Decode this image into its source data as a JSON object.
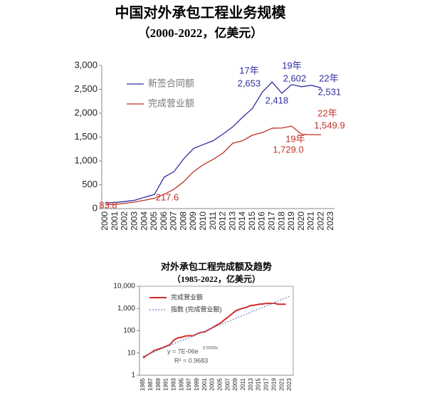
{
  "chart_data": [
    {
      "type": "line",
      "title": "中国对外承包工程业务规模",
      "subtitle": "（2000-2022，亿美元）",
      "categories": [
        "2000",
        "2001",
        "2002",
        "2003",
        "2004",
        "2005",
        "2006",
        "2007",
        "2008",
        "2009",
        "2010",
        "2011",
        "2012",
        "2013",
        "2014",
        "2015",
        "2016",
        "2017",
        "2018",
        "2019",
        "2020",
        "2021",
        "2022",
        "2023"
      ],
      "series": [
        {
          "name": "新签合同额",
          "color": "#2e2ea0",
          "values": [
            117,
            130,
            150,
            176,
            238,
            296,
            660,
            776,
            1046,
            1262,
            1344,
            1423,
            1565,
            1716,
            1918,
            2101,
            2440,
            2653,
            2418,
            2602,
            2555,
            2585,
            2531,
            null
          ],
          "value_labels": [
            null,
            null,
            null,
            null,
            null,
            null,
            null,
            null,
            null,
            null,
            null,
            null,
            null,
            null,
            null,
            null,
            null,
            "2,653",
            "2,418",
            "2,602",
            null,
            null,
            "2,531",
            null
          ]
        },
        {
          "name": "完成营业额",
          "color": "#c0302a",
          "values": [
            83.8,
            89,
            112,
            138,
            175,
            217.6,
            300,
            406,
            566,
            777,
            922,
            1034,
            1166,
            1371,
            1424,
            1541,
            1594,
            1686,
            1690,
            1729.0,
            1559,
            1550,
            1549.9,
            null
          ],
          "value_labels": [
            "83.8",
            null,
            null,
            null,
            null,
            "217.6",
            null,
            null,
            null,
            null,
            null,
            null,
            null,
            null,
            null,
            null,
            null,
            null,
            null,
            "1,729.0",
            null,
            null,
            "1,549.9",
            null
          ]
        }
      ],
      "annotations": [
        "17年",
        "19年",
        "22年",
        "19年",
        "22年"
      ],
      "ylim": [
        0,
        3000
      ],
      "yticks": [
        0,
        500,
        {
          "value": 1000,
          "label": "1,000"
        },
        {
          "value": 1500,
          "label": "1,500"
        },
        {
          "value": 2000,
          "label": "2,000"
        },
        {
          "value": 2500,
          "label": "2,500"
        },
        {
          "value": 3000,
          "label": "3,000"
        }
      ],
      "log_scale": false,
      "grid": false,
      "frame": false
    },
    {
      "type": "line",
      "title": "对外承包工程完成额及趋势",
      "subtitle": "（1985-2022，亿美元）",
      "categories": [
        "1985",
        null,
        "1987",
        null,
        "1989",
        null,
        "1991",
        null,
        "1993",
        null,
        "1995",
        null,
        "1997",
        null,
        "1999",
        null,
        "2001",
        null,
        "2003",
        null,
        "2005",
        null,
        "2007",
        null,
        "2009",
        null,
        "2011",
        null,
        "2013",
        null,
        "2015",
        null,
        "2017",
        null,
        "2019",
        null,
        "2021",
        null,
        "2023"
      ],
      "series": [
        {
          "name": "完成营业额",
          "color": "#d42a2a",
          "dash": false,
          "values": [
            6,
            8,
            10,
            13,
            15,
            17,
            20,
            24,
            38,
            48,
            51,
            58,
            60,
            59,
            73,
            83.8,
            89,
            112,
            138,
            175,
            217.6,
            300,
            406,
            566,
            777,
            922,
            1034,
            1166,
            1371,
            1424,
            1541,
            1594,
            1686,
            1690,
            1729.0,
            1559,
            1550,
            1549.9,
            null
          ]
        },
        {
          "name": "指数 (完成营业额)",
          "color": "#6a80c8",
          "dash": true,
          "values": [
            7.0,
            8.2,
            9.7,
            11.4,
            13.5,
            15.9,
            18.7,
            22.0,
            26.0,
            30.6,
            36.0,
            42.4,
            50.0,
            58.9,
            69.4,
            81.7,
            96.3,
            113,
            134,
            157,
            185,
            218,
            257,
            303,
            357,
            420,
            495,
            583,
            687,
            809,
            953,
            1123,
            1322,
            1558,
            1835,
            2161,
            2546,
            2999,
            3533
          ]
        }
      ],
      "annotations": [
        "y = 7E-06e",
        "0.0005x",
        "R² = 0.9683"
      ],
      "ylim": [
        1,
        10000
      ],
      "yticks": [
        1,
        10,
        100,
        {
          "value": 1000,
          "label": "1,000"
        },
        {
          "value": 10000,
          "label": "10,000"
        }
      ],
      "log_scale": true,
      "grid": false,
      "frame": true
    }
  ]
}
